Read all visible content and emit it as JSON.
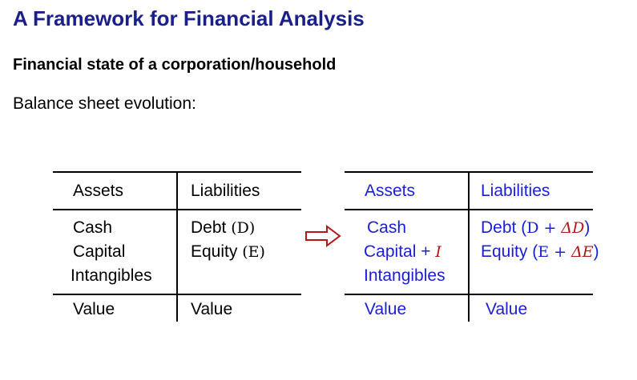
{
  "slide": {
    "title": "A Framework for Financial Analysis",
    "subtitle": "Financial state of a corporation/household",
    "intro": "Balance sheet evolution:"
  },
  "colors": {
    "title": "#1a1f8c",
    "updated_text": "#1a1fd6",
    "delta": "#b01818"
  },
  "before": {
    "assets_header": "Assets",
    "liabilities_header": "Liabilities",
    "assets": [
      "Cash",
      "Capital",
      "Intangibles"
    ],
    "debt_label": "Debt",
    "debt_symbol": "(D)",
    "equity_label": "Equity",
    "equity_symbol": "(E)",
    "assets_value": "Value",
    "liabilities_value": "Value"
  },
  "after": {
    "assets_header": "Assets",
    "liabilities_header": "Liabilities",
    "cash": "Cash",
    "capital": "Capital + ",
    "capital_delta": "I",
    "intangibles": "Intangibles",
    "debt_label": "Debt (",
    "debt_base": "D + ",
    "debt_delta": "ΔD",
    "debt_close": ")",
    "equity_label": "Equity (",
    "equity_base": "E + ",
    "equity_delta": "ΔE",
    "equity_close": ")",
    "assets_value": "Value",
    "liabilities_value": "Value"
  },
  "transition_icon": "right-arrow-icon"
}
